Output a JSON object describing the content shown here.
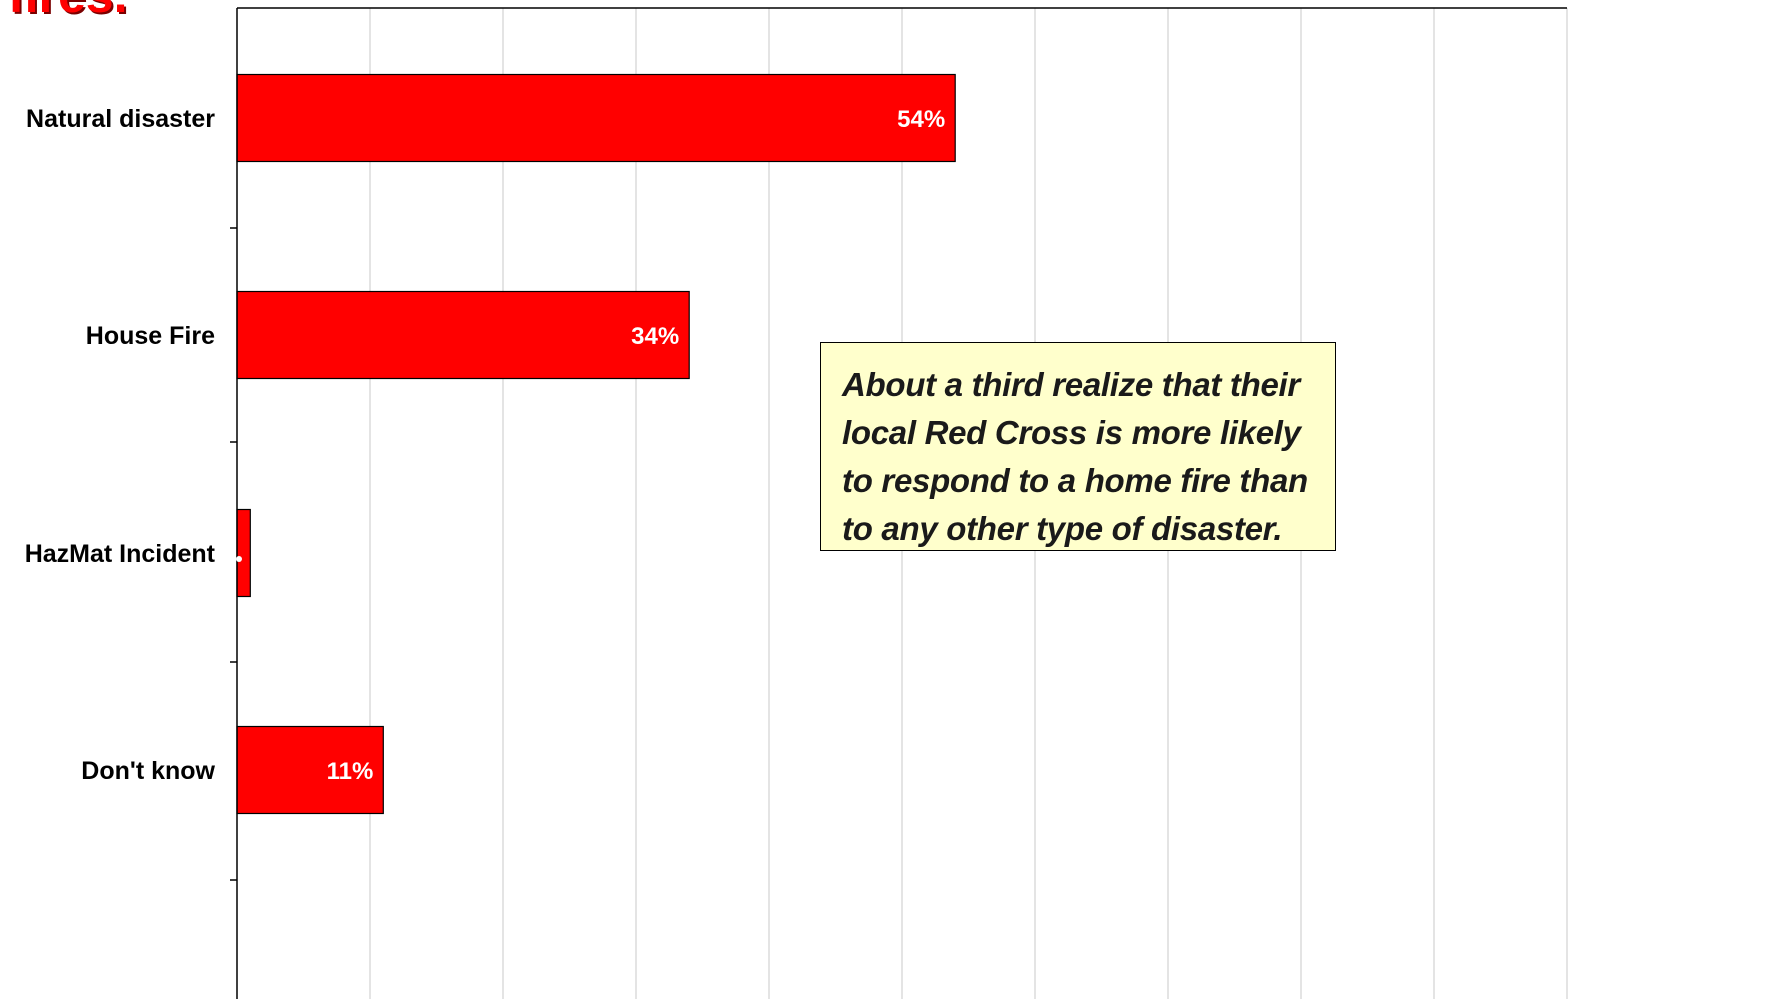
{
  "title_fragment": "fires.",
  "callout": {
    "lines": [
      "About a third realize that their",
      "local Red Cross is more likely",
      "to respond to a home fire than",
      "to any other type of disaster."
    ]
  },
  "chart_data": {
    "type": "bar",
    "orientation": "horizontal",
    "categories": [
      "Natural disaster",
      "House Fire",
      "HazMat Incident",
      "Don't know"
    ],
    "values": [
      54,
      34,
      1,
      11
    ],
    "data_labels": [
      "54%",
      "34%",
      "",
      "11%"
    ],
    "xlim": [
      0,
      100
    ],
    "grid": true,
    "bar_color": "#ff0000"
  }
}
